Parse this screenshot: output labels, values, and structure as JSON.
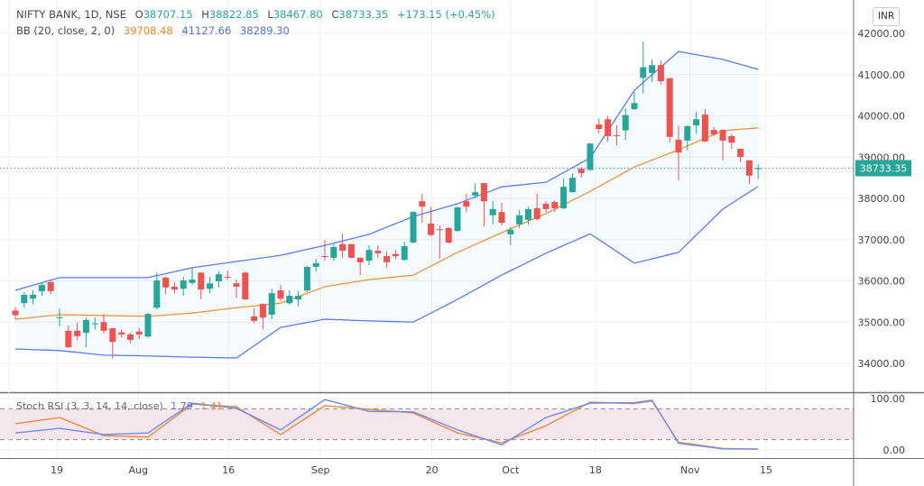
{
  "header": {
    "symbol": "NIFTY BANK, 1D, NSE",
    "open_label": "O",
    "open": "38707.15",
    "high_label": "H",
    "high": "38822.85",
    "low_label": "L",
    "low": "38467.80",
    "close_label": "C",
    "close": "38733.35",
    "change": "+173.15 (+0.45%)"
  },
  "bb_legend": {
    "label": "BB (20, close, 2, 0)",
    "basis": "39708.48",
    "upper": "41127.66",
    "lower": "38289.30"
  },
  "stoch_legend": {
    "label": "Stoch RSI (3, 3, 14, 14, close)",
    "k": "1.79",
    "d": "1.41"
  },
  "currency_button": "INR",
  "current_price_label": "38733.35",
  "colors": {
    "up": "#26a69a",
    "down": "#ef5350",
    "bb_basis": "#f7933a",
    "bb_band": "#5b7cf5",
    "stoch_k": "#6a8cf2",
    "stoch_d": "#f58a3a"
  },
  "chart_data": [
    {
      "type": "candlestick",
      "title": "NIFTY BANK, 1D, NSE",
      "ylim": [
        33700,
        42350
      ],
      "y_ticks": [
        "34000.00",
        "35000.00",
        "36000.00",
        "37000.00",
        "38000.00",
        "39000.00",
        "40000.00",
        "41000.00",
        "42000.00"
      ],
      "y_tick_values": [
        34000,
        35000,
        36000,
        37000,
        38000,
        39000,
        40000,
        41000,
        42000
      ],
      "x_ticks": [
        {
          "label": "19",
          "index": 4.7
        },
        {
          "label": "Aug",
          "index": 13.9
        },
        {
          "label": "16",
          "index": 24.1
        },
        {
          "label": "Sep",
          "index": 34.5
        },
        {
          "label": "20",
          "index": 47.1
        },
        {
          "label": "Oct",
          "index": 56.0
        },
        {
          "label": "18",
          "index": 65.6
        },
        {
          "label": "Nov",
          "index": 76.3
        },
        {
          "label": "15",
          "index": 84.9
        }
      ],
      "ohlc": [
        [
          35280,
          35370,
          35070,
          35170
        ],
        [
          35460,
          35730,
          35350,
          35660
        ],
        [
          35570,
          35770,
          35440,
          35660
        ],
        [
          35750,
          35970,
          35640,
          35900
        ],
        [
          35970,
          36010,
          35680,
          35750
        ],
        [
          35100,
          35330,
          34900,
          35120
        ],
        [
          34790,
          34920,
          34380,
          34390
        ],
        [
          34790,
          34980,
          34570,
          34660
        ],
        [
          34740,
          35110,
          34390,
          35050
        ],
        [
          34950,
          35110,
          34820,
          34970
        ],
        [
          35000,
          35200,
          34720,
          34790
        ],
        [
          34850,
          34860,
          34110,
          34520
        ],
        [
          34750,
          34810,
          34630,
          34700
        ],
        [
          34700,
          34740,
          34480,
          34570
        ],
        [
          34770,
          34860,
          34590,
          34700
        ],
        [
          34650,
          35220,
          34630,
          35200
        ],
        [
          35350,
          36210,
          35310,
          36010
        ],
        [
          36080,
          36100,
          35680,
          35840
        ],
        [
          35860,
          35970,
          35700,
          35790
        ],
        [
          35810,
          36100,
          35640,
          36010
        ],
        [
          35950,
          36320,
          35900,
          36030
        ],
        [
          36200,
          36210,
          35550,
          35790
        ],
        [
          35810,
          36100,
          35700,
          35940
        ],
        [
          35990,
          36230,
          35840,
          36160
        ],
        [
          36100,
          36250,
          36030,
          36080
        ],
        [
          35940,
          36030,
          35590,
          35860
        ],
        [
          36200,
          36230,
          35530,
          35550
        ],
        [
          35140,
          35330,
          34980,
          35030
        ],
        [
          35440,
          35450,
          34830,
          35110
        ],
        [
          35180,
          35810,
          35070,
          35700
        ],
        [
          35770,
          35900,
          35510,
          35570
        ],
        [
          35460,
          35770,
          35420,
          35640
        ],
        [
          35550,
          35750,
          35380,
          35640
        ],
        [
          35770,
          36360,
          35730,
          36340
        ],
        [
          36340,
          36530,
          36230,
          36430
        ],
        [
          36600,
          36990,
          36490,
          36580
        ],
        [
          36560,
          36880,
          36490,
          36820
        ],
        [
          36890,
          37150,
          36560,
          36730
        ],
        [
          36890,
          36900,
          36550,
          36560
        ],
        [
          36560,
          36570,
          36140,
          36450
        ],
        [
          36490,
          36860,
          36380,
          36750
        ],
        [
          36730,
          36860,
          36560,
          36670
        ],
        [
          36600,
          36710,
          36320,
          36450
        ],
        [
          36650,
          36750,
          36530,
          36600
        ],
        [
          36510,
          36950,
          36490,
          36840
        ],
        [
          36930,
          37690,
          36910,
          37670
        ],
        [
          37930,
          38110,
          37410,
          37800
        ],
        [
          37390,
          37800,
          37090,
          37110
        ],
        [
          37250,
          37340,
          36540,
          37230
        ],
        [
          37280,
          37300,
          36910,
          36930
        ],
        [
          37210,
          37800,
          37190,
          37780
        ],
        [
          37930,
          38110,
          37670,
          37800
        ],
        [
          38070,
          38370,
          38000,
          38150
        ],
        [
          38370,
          38370,
          37320,
          37930
        ],
        [
          37590,
          37930,
          37370,
          37740
        ],
        [
          37670,
          37890,
          37340,
          37410
        ],
        [
          37130,
          37300,
          36860,
          37240
        ],
        [
          37370,
          37720,
          37280,
          37590
        ],
        [
          37480,
          37800,
          37370,
          37740
        ],
        [
          37760,
          38110,
          37460,
          37500
        ],
        [
          37870,
          37930,
          37670,
          37740
        ],
        [
          37910,
          37950,
          37670,
          37760
        ],
        [
          37760,
          38480,
          37740,
          38280
        ],
        [
          38150,
          38610,
          38140,
          38500
        ],
        [
          38720,
          38760,
          38500,
          38610
        ],
        [
          38690,
          39350,
          38670,
          39330
        ],
        [
          39790,
          39940,
          39570,
          39680
        ],
        [
          39920,
          40000,
          39370,
          39510
        ],
        [
          39530,
          39770,
          39290,
          39510
        ],
        [
          39650,
          40180,
          39420,
          40020
        ],
        [
          40160,
          40580,
          40150,
          40310
        ],
        [
          40920,
          41800,
          40540,
          41180
        ],
        [
          41040,
          41370,
          40820,
          41230
        ],
        [
          41230,
          41340,
          40760,
          40840
        ],
        [
          40910,
          40930,
          39360,
          39490
        ],
        [
          39420,
          39770,
          38440,
          39110
        ],
        [
          39400,
          39770,
          39160,
          39750
        ],
        [
          39770,
          40100,
          39570,
          39920
        ],
        [
          40030,
          40160,
          39360,
          39380
        ],
        [
          39660,
          39730,
          39510,
          39550
        ],
        [
          39660,
          39670,
          38920,
          39400
        ],
        [
          39510,
          39550,
          39200,
          39350
        ],
        [
          39200,
          39210,
          38870,
          39000
        ],
        [
          38920,
          38930,
          38350,
          38550
        ],
        [
          38707.15,
          38822.85,
          38467.8,
          38733.35
        ]
      ],
      "bollinger": {
        "sample_index": [
          0,
          5,
          10,
          15,
          20,
          25,
          30,
          35,
          40,
          45,
          50,
          55,
          60,
          65,
          70,
          75,
          80,
          84
        ],
        "upper": [
          35770,
          36080,
          36080,
          36080,
          36320,
          36470,
          36620,
          36860,
          37130,
          37560,
          37870,
          38280,
          38390,
          38980,
          40620,
          41560,
          41370,
          41127.66
        ],
        "basis": [
          35070,
          35180,
          35160,
          35140,
          35220,
          35350,
          35460,
          35860,
          36030,
          36140,
          36690,
          37170,
          37630,
          38170,
          38760,
          39180,
          39640,
          39708.48
        ],
        "lower": [
          34350,
          34310,
          34200,
          34180,
          34150,
          34130,
          34870,
          35070,
          35030,
          35000,
          35550,
          36140,
          36670,
          37140,
          36430,
          36690,
          37740,
          38289.3
        ]
      }
    },
    {
      "type": "line",
      "title": "Stoch RSI (3, 3, 14, 14, close)",
      "ylim": [
        0,
        100
      ],
      "y_ticks": [
        "100.00",
        "0.00"
      ],
      "y_tick_values": [
        100,
        0
      ],
      "bands": [
        20,
        80
      ],
      "x_index": [
        0,
        5,
        10,
        15,
        20,
        25,
        30,
        35,
        40,
        45,
        50,
        55,
        60,
        65,
        70,
        72,
        75,
        80,
        84
      ],
      "series": [
        {
          "name": "K",
          "values": [
            33,
            42,
            30,
            33,
            91,
            81,
            39,
            98,
            75,
            74,
            39,
            10,
            63,
            91,
            92,
            97,
            13,
            2,
            1.79
          ]
        },
        {
          "name": "D",
          "values": [
            51,
            63,
            28,
            25,
            89,
            84,
            30,
            86,
            79,
            72,
            33,
            14,
            47,
            93,
            90,
            95,
            15,
            3,
            1.41
          ]
        }
      ]
    }
  ]
}
